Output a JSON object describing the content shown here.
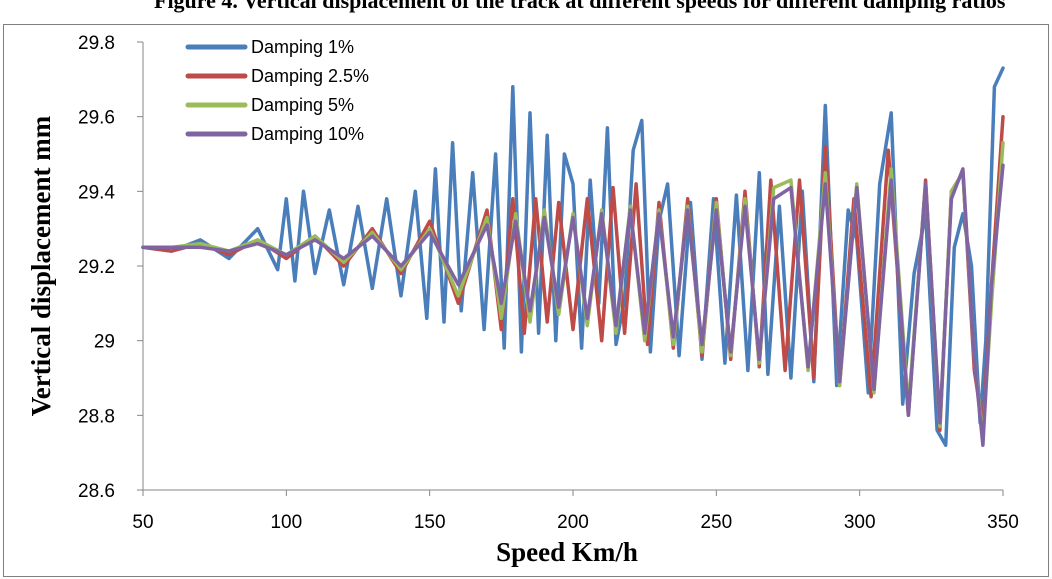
{
  "page": {
    "caption_fragment": "Figure 4. Vertical displacement of the track at different speeds for different damping ratios"
  },
  "chart_data": {
    "type": "line",
    "title": "",
    "xlabel": "Speed Km/h",
    "ylabel": "Vertical displacement  mm",
    "xlim": [
      50,
      350
    ],
    "ylim": [
      28.6,
      29.8
    ],
    "xticks": [
      50,
      100,
      150,
      200,
      250,
      300,
      350
    ],
    "yticks": [
      28.6,
      28.8,
      29,
      29.2,
      29.4,
      29.6,
      29.8
    ],
    "xtick_labels": [
      "50",
      "100",
      "150",
      "200",
      "250",
      "300",
      "350"
    ],
    "ytick_labels": [
      "28.6",
      "28.8",
      "29",
      "29.2",
      "29.4",
      "29.6",
      "29.8"
    ],
    "grid": false,
    "legend_position": "top-left",
    "series": [
      {
        "name": "Damping 1%",
        "color": "#4a7ebb",
        "x": [
          50,
          60,
          70,
          80,
          90,
          97,
          100,
          103,
          106,
          110,
          115,
          120,
          125,
          130,
          135,
          140,
          145,
          149,
          152,
          155,
          158,
          161,
          165,
          169,
          173,
          176,
          179,
          182,
          185,
          188,
          191,
          194,
          197,
          200,
          203,
          206,
          209,
          212,
          215,
          218,
          221,
          224,
          227,
          230,
          233,
          237,
          241,
          245,
          249,
          253,
          257,
          261,
          265,
          268,
          272,
          276,
          280,
          284,
          288,
          292,
          296,
          299,
          303,
          307,
          311,
          315,
          319,
          323,
          327,
          330,
          333,
          336,
          339,
          342,
          344,
          347,
          350
        ],
        "y": [
          29.25,
          29.24,
          29.27,
          29.22,
          29.3,
          29.19,
          29.38,
          29.16,
          29.4,
          29.18,
          29.35,
          29.15,
          29.36,
          29.14,
          29.38,
          29.12,
          29.4,
          29.06,
          29.46,
          29.05,
          29.53,
          29.08,
          29.45,
          29.03,
          29.5,
          28.98,
          29.68,
          28.97,
          29.61,
          29.02,
          29.55,
          29.0,
          29.5,
          29.42,
          28.98,
          29.43,
          29.1,
          29.57,
          28.99,
          29.11,
          29.51,
          29.59,
          28.97,
          29.32,
          29.42,
          28.96,
          29.37,
          28.95,
          29.38,
          28.94,
          29.39,
          28.92,
          29.45,
          28.91,
          29.36,
          28.9,
          29.4,
          28.89,
          29.63,
          28.88,
          29.35,
          29.27,
          28.86,
          29.42,
          29.61,
          28.83,
          29.18,
          29.34,
          28.76,
          28.72,
          29.25,
          29.34,
          29.2,
          28.78,
          29.0,
          29.68,
          29.73
        ]
      },
      {
        "name": "Damping 2.5%",
        "color": "#be4b48",
        "x": [
          50,
          60,
          70,
          80,
          90,
          100,
          110,
          120,
          130,
          140,
          150,
          160,
          170,
          175,
          179,
          183,
          187,
          191,
          195,
          200,
          205,
          210,
          214,
          218,
          222,
          226,
          230,
          235,
          240,
          245,
          250,
          255,
          260,
          265,
          269,
          274,
          279,
          284,
          288,
          293,
          298,
          304,
          310,
          317,
          323,
          328,
          332,
          336,
          340,
          343,
          346,
          350
        ],
        "y": [
          29.25,
          29.24,
          29.26,
          29.23,
          29.27,
          29.22,
          29.28,
          29.2,
          29.3,
          29.18,
          29.32,
          29.1,
          29.35,
          29.03,
          29.38,
          29.02,
          29.38,
          29.05,
          29.37,
          29.03,
          29.38,
          29.0,
          29.41,
          29.02,
          29.42,
          28.99,
          29.37,
          28.98,
          29.38,
          28.96,
          29.38,
          28.95,
          29.4,
          28.93,
          29.43,
          28.92,
          29.43,
          28.9,
          29.52,
          28.88,
          29.38,
          28.85,
          29.51,
          28.8,
          29.43,
          28.76,
          29.4,
          29.45,
          28.92,
          28.77,
          29.15,
          29.6
        ]
      },
      {
        "name": "Damping 5%",
        "color": "#9bbb59",
        "x": [
          50,
          60,
          70,
          80,
          90,
          100,
          110,
          120,
          130,
          140,
          150,
          160,
          170,
          175,
          180,
          185,
          190,
          195,
          200,
          205,
          210,
          215,
          220,
          225,
          230,
          235,
          240,
          245,
          250,
          255,
          260,
          265,
          270,
          276,
          282,
          288,
          293,
          299,
          305,
          311,
          317,
          323,
          328,
          332,
          336,
          340,
          343,
          346,
          350
        ],
        "y": [
          29.25,
          29.25,
          29.26,
          29.24,
          29.27,
          29.23,
          29.28,
          29.21,
          29.29,
          29.19,
          29.3,
          29.12,
          29.33,
          29.06,
          29.34,
          29.05,
          29.35,
          29.07,
          29.34,
          29.04,
          29.35,
          29.02,
          29.36,
          29.0,
          29.35,
          28.99,
          29.36,
          28.97,
          29.37,
          28.96,
          29.38,
          28.94,
          29.41,
          29.43,
          28.92,
          29.45,
          28.88,
          29.42,
          28.86,
          29.46,
          28.82,
          29.42,
          28.77,
          29.4,
          29.45,
          28.95,
          28.74,
          29.1,
          29.53
        ]
      },
      {
        "name": "Damping 10%",
        "color": "#8064a2",
        "x": [
          50,
          60,
          70,
          80,
          90,
          100,
          110,
          120,
          130,
          140,
          150,
          160,
          170,
          175,
          180,
          185,
          190,
          195,
          200,
          205,
          210,
          215,
          220,
          225,
          230,
          235,
          240,
          245,
          250,
          255,
          260,
          265,
          270,
          276,
          282,
          288,
          293,
          299,
          305,
          311,
          317,
          323,
          328,
          332,
          336,
          340,
          343,
          346,
          350
        ],
        "y": [
          29.25,
          29.25,
          29.25,
          29.24,
          29.26,
          29.23,
          29.27,
          29.22,
          29.28,
          29.2,
          29.29,
          29.15,
          29.31,
          29.1,
          29.32,
          29.08,
          29.33,
          29.09,
          29.33,
          29.06,
          29.34,
          29.04,
          29.35,
          29.02,
          29.34,
          29.01,
          29.35,
          28.99,
          29.35,
          28.97,
          29.36,
          28.95,
          29.38,
          29.41,
          28.93,
          29.42,
          28.89,
          29.41,
          28.87,
          29.43,
          28.8,
          29.42,
          28.78,
          29.38,
          29.46,
          28.95,
          28.72,
          29.15,
          29.47
        ]
      }
    ]
  }
}
